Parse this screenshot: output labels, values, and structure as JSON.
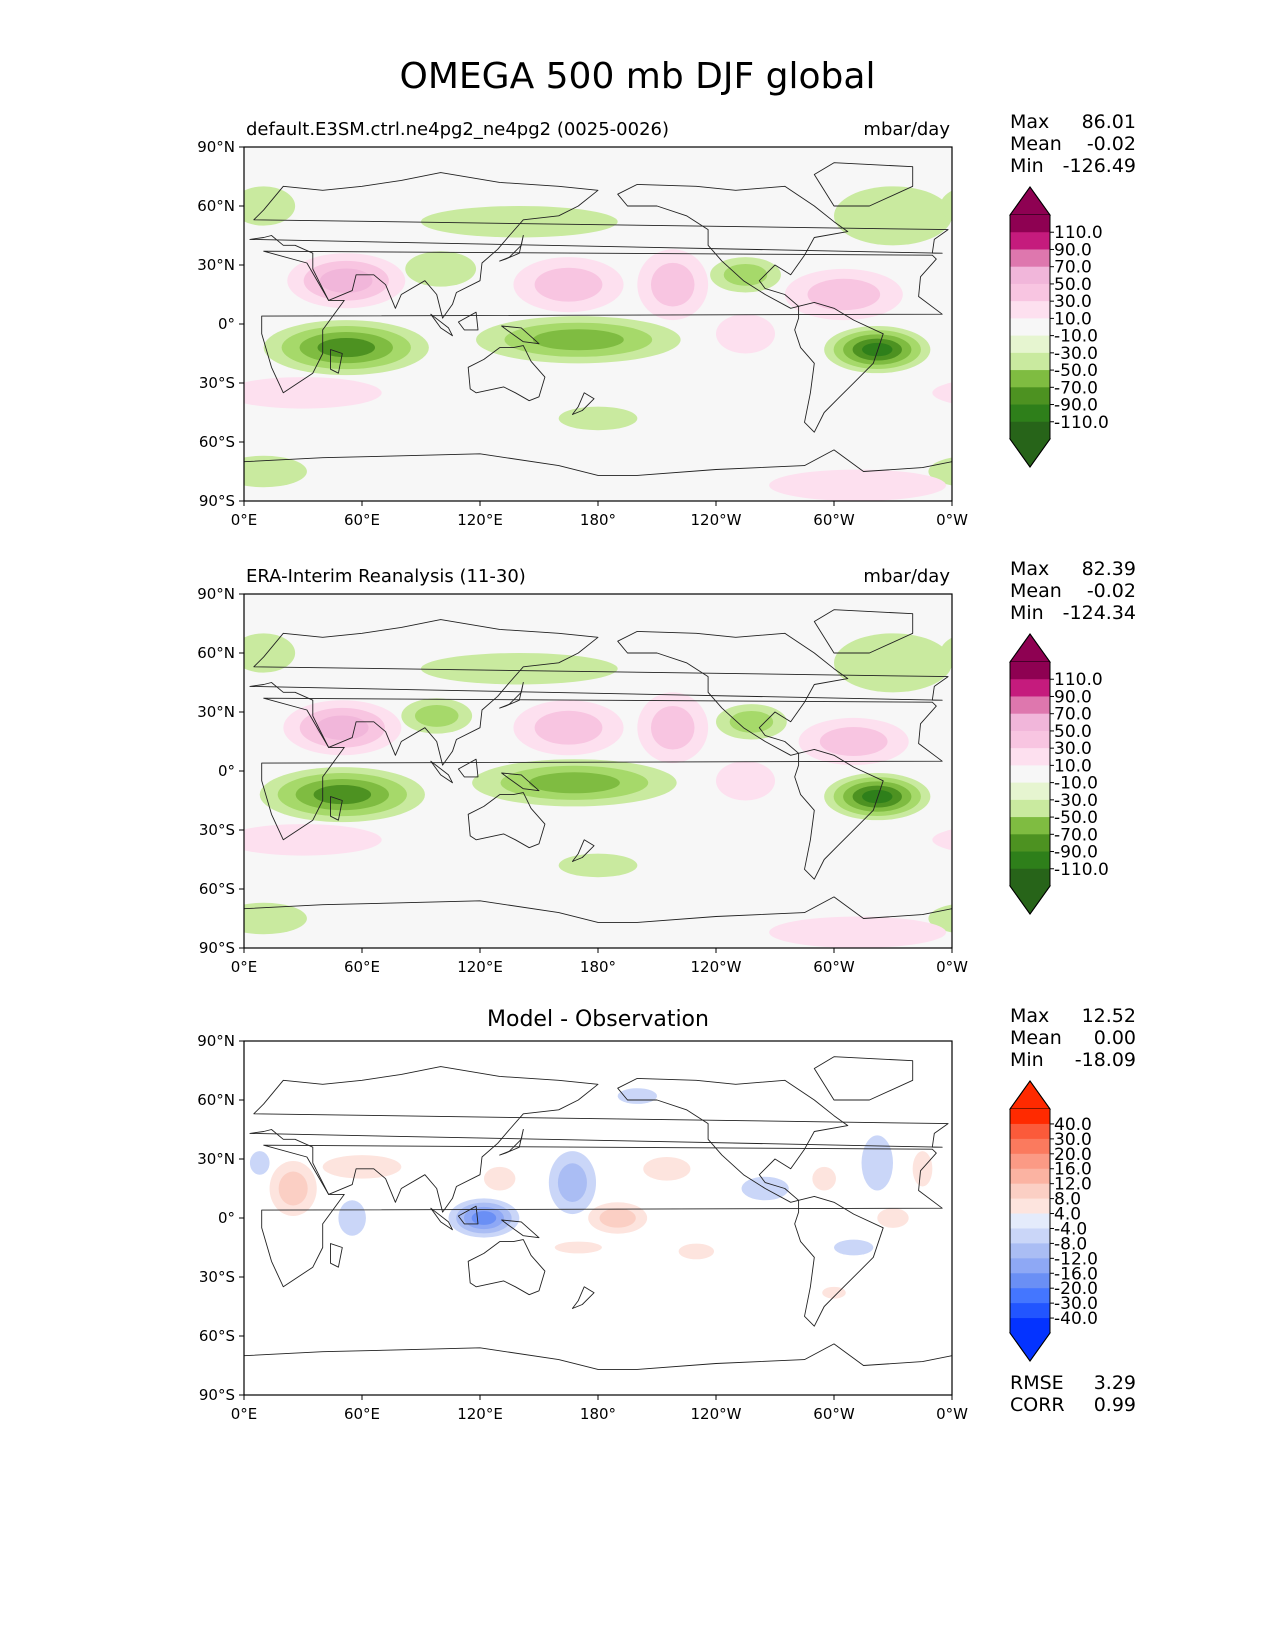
{
  "title": "OMEGA 500 mb DJF global",
  "colors": {
    "omega": [
      "#276419",
      "#2e7f1a",
      "#4d9221",
      "#7fbc41",
      "#a6d96a",
      "#c9ea9f",
      "#e6f5d0",
      "#f7f7f7",
      "#fde0ef",
      "#f8c5e1",
      "#f1b6da",
      "#e59bc9",
      "#de77ae",
      "#c51b7d",
      "#8e0152"
    ],
    "diff": [
      "#0433ff",
      "#2255ff",
      "#4476ff",
      "#6a8ff5",
      "#8ea8f5",
      "#aabdf4",
      "#cad6f8",
      "#e4ebfb",
      "#ffffff",
      "#fde4de",
      "#fbcfc4",
      "#fbb3a2",
      "#fb9a85",
      "#fb7a5e",
      "#fb5a3a",
      "#ff2a00"
    ]
  },
  "chart_data": [
    {
      "type": "heatmap",
      "title": "default.E3SM.ctrl.ne4pg2_ne4pg2 (0025-0026)",
      "units": "mbar/day",
      "xlabel": "",
      "ylabel": "",
      "x_ticks": [
        "0°E",
        "60°E",
        "120°E",
        "180°",
        "120°W",
        "60°W",
        "0°W"
      ],
      "y_ticks": [
        "90°N",
        "60°N",
        "30°N",
        "0°",
        "30°S",
        "60°S",
        "90°S"
      ],
      "xlim": [
        0,
        360
      ],
      "ylim": [
        -90,
        90
      ],
      "stats": {
        "Max": "86.01",
        "Mean": "-0.02",
        "Min": "-126.49"
      },
      "colorbar_levels": [
        "110.0",
        "90.0",
        "70.0",
        "50.0",
        "30.0",
        "10.0",
        "-10.0",
        "-30.0",
        "-50.0",
        "-70.0",
        "-90.0",
        "-110.0"
      ],
      "features": [
        {
          "lon": 52,
          "lat": 22,
          "rx": 30,
          "ry": 14,
          "value": 70
        },
        {
          "lon": 165,
          "lat": 20,
          "rx": 28,
          "ry": 14,
          "value": 40
        },
        {
          "lon": 218,
          "lat": 20,
          "rx": 18,
          "ry": 18,
          "value": 45
        },
        {
          "lon": 305,
          "lat": 15,
          "rx": 30,
          "ry": 13,
          "value": 50
        },
        {
          "lon": 52,
          "lat": -12,
          "rx": 42,
          "ry": 14,
          "value": -95
        },
        {
          "lon": 170,
          "lat": -8,
          "rx": 52,
          "ry": 12,
          "value": -75
        },
        {
          "lon": 322,
          "lat": -13,
          "rx": 27,
          "ry": 12,
          "value": -110
        },
        {
          "lon": 100,
          "lat": 28,
          "rx": 18,
          "ry": 9,
          "value": -30
        },
        {
          "lon": 255,
          "lat": 25,
          "rx": 18,
          "ry": 9,
          "value": -45
        },
        {
          "lon": 140,
          "lat": 52,
          "rx": 50,
          "ry": 8,
          "value": -20
        },
        {
          "lon": 330,
          "lat": 55,
          "rx": 30,
          "ry": 15,
          "value": -20
        },
        {
          "lon": 10,
          "lat": 60,
          "rx": 16,
          "ry": 10,
          "value": -20
        },
        {
          "lon": 10,
          "lat": -75,
          "rx": 22,
          "ry": 8,
          "value": -20
        },
        {
          "lon": 180,
          "lat": -48,
          "rx": 20,
          "ry": 6,
          "value": -20
        },
        {
          "lon": 312,
          "lat": -82,
          "rx": 45,
          "ry": 8,
          "value": 20
        },
        {
          "lon": 255,
          "lat": -5,
          "rx": 15,
          "ry": 10,
          "value": 25
        },
        {
          "lon": 30,
          "lat": -35,
          "rx": 40,
          "ry": 8,
          "value": 15
        }
      ]
    },
    {
      "type": "heatmap",
      "title": "ERA-Interim Reanalysis (11-30)",
      "units": "mbar/day",
      "xlabel": "",
      "ylabel": "",
      "x_ticks": [
        "0°E",
        "60°E",
        "120°E",
        "180°",
        "120°W",
        "60°W",
        "0°W"
      ],
      "y_ticks": [
        "90°N",
        "60°N",
        "30°N",
        "0°",
        "30°S",
        "60°S",
        "90°S"
      ],
      "xlim": [
        0,
        360
      ],
      "ylim": [
        -90,
        90
      ],
      "stats": {
        "Max": "82.39",
        "Mean": "-0.02",
        "Min": "-124.34"
      },
      "colorbar_levels": [
        "110.0",
        "90.0",
        "70.0",
        "50.0",
        "30.0",
        "10.0",
        "-10.0",
        "-30.0",
        "-50.0",
        "-70.0",
        "-90.0",
        "-110.0"
      ],
      "features": [
        {
          "lon": 50,
          "lat": 22,
          "rx": 30,
          "ry": 14,
          "value": 60
        },
        {
          "lon": 165,
          "lat": 22,
          "rx": 28,
          "ry": 14,
          "value": 55
        },
        {
          "lon": 218,
          "lat": 22,
          "rx": 18,
          "ry": 18,
          "value": 45
        },
        {
          "lon": 310,
          "lat": 15,
          "rx": 28,
          "ry": 12,
          "value": 50
        },
        {
          "lon": 50,
          "lat": -12,
          "rx": 42,
          "ry": 14,
          "value": -90
        },
        {
          "lon": 168,
          "lat": -6,
          "rx": 52,
          "ry": 12,
          "value": -75
        },
        {
          "lon": 322,
          "lat": -13,
          "rx": 27,
          "ry": 12,
          "value": -110
        },
        {
          "lon": 98,
          "lat": 28,
          "rx": 18,
          "ry": 9,
          "value": -40
        },
        {
          "lon": 258,
          "lat": 25,
          "rx": 18,
          "ry": 9,
          "value": -40
        },
        {
          "lon": 140,
          "lat": 52,
          "rx": 50,
          "ry": 8,
          "value": -20
        },
        {
          "lon": 330,
          "lat": 55,
          "rx": 30,
          "ry": 15,
          "value": -20
        },
        {
          "lon": 10,
          "lat": 60,
          "rx": 16,
          "ry": 10,
          "value": -20
        },
        {
          "lon": 10,
          "lat": -75,
          "rx": 22,
          "ry": 8,
          "value": -20
        },
        {
          "lon": 180,
          "lat": -48,
          "rx": 20,
          "ry": 6,
          "value": -20
        },
        {
          "lon": 312,
          "lat": -82,
          "rx": 45,
          "ry": 8,
          "value": 20
        },
        {
          "lon": 255,
          "lat": -5,
          "rx": 15,
          "ry": 10,
          "value": 25
        },
        {
          "lon": 30,
          "lat": -35,
          "rx": 40,
          "ry": 8,
          "value": 15
        }
      ]
    },
    {
      "type": "heatmap",
      "title": "Model - Observation",
      "units": "",
      "xlabel": "",
      "ylabel": "",
      "x_ticks": [
        "0°E",
        "60°E",
        "120°E",
        "180°",
        "120°W",
        "60°W",
        "0°W"
      ],
      "y_ticks": [
        "90°N",
        "60°N",
        "30°N",
        "0°",
        "30°S",
        "60°S",
        "90°S"
      ],
      "xlim": [
        0,
        360
      ],
      "ylim": [
        -90,
        90
      ],
      "stats": {
        "Max": "12.52",
        "Mean": "0.00",
        "Min": "-18.09"
      },
      "metrics": {
        "RMSE": "3.29",
        "CORR": "0.99"
      },
      "colorbar_levels": [
        "40.0",
        "30.0",
        "20.0",
        "16.0",
        "12.0",
        "8.0",
        "4.0",
        "-4.0",
        "-8.0",
        "-12.0",
        "-16.0",
        "-20.0",
        "-30.0",
        "-40.0"
      ],
      "features": [
        {
          "lon": 25,
          "lat": 15,
          "rx": 12,
          "ry": 14,
          "value": 10
        },
        {
          "lon": 60,
          "lat": 26,
          "rx": 20,
          "ry": 6,
          "value": 5
        },
        {
          "lon": 55,
          "lat": 0,
          "rx": 7,
          "ry": 9,
          "value": -6
        },
        {
          "lon": 122,
          "lat": 0,
          "rx": 18,
          "ry": 10,
          "value": -16
        },
        {
          "lon": 167,
          "lat": 18,
          "rx": 12,
          "ry": 16,
          "value": -8
        },
        {
          "lon": 190,
          "lat": 0,
          "rx": 15,
          "ry": 8,
          "value": 9
        },
        {
          "lon": 130,
          "lat": 20,
          "rx": 8,
          "ry": 6,
          "value": 5
        },
        {
          "lon": 215,
          "lat": 25,
          "rx": 12,
          "ry": 6,
          "value": 5
        },
        {
          "lon": 265,
          "lat": 15,
          "rx": 12,
          "ry": 6,
          "value": -6
        },
        {
          "lon": 322,
          "lat": 28,
          "rx": 8,
          "ry": 14,
          "value": -6
        },
        {
          "lon": 295,
          "lat": 20,
          "rx": 6,
          "ry": 6,
          "value": 5
        },
        {
          "lon": 345,
          "lat": 25,
          "rx": 5,
          "ry": 9,
          "value": 5
        },
        {
          "lon": 330,
          "lat": 0,
          "rx": 8,
          "ry": 5,
          "value": 5
        },
        {
          "lon": 230,
          "lat": -17,
          "rx": 9,
          "ry": 4,
          "value": 5
        },
        {
          "lon": 310,
          "lat": -15,
          "rx": 10,
          "ry": 4,
          "value": -6
        },
        {
          "lon": 200,
          "lat": 62,
          "rx": 10,
          "ry": 4,
          "value": -5
        },
        {
          "lon": 170,
          "lat": -15,
          "rx": 12,
          "ry": 3,
          "value": 5
        },
        {
          "lon": 8,
          "lat": 28,
          "rx": 5,
          "ry": 6,
          "value": -5
        },
        {
          "lon": 300,
          "lat": -38,
          "rx": 6,
          "ry": 3,
          "value": 5
        }
      ]
    }
  ]
}
